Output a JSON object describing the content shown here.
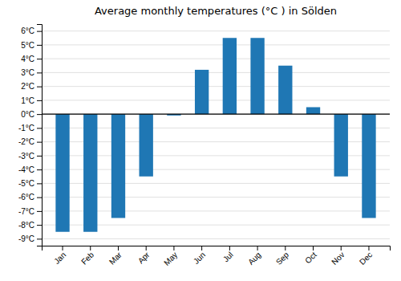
{
  "chart_data": {
    "type": "bar",
    "title": "Average monthly temperatures (°C ) in Sölden",
    "categories": [
      "Jan",
      "Feb",
      "Mar",
      "Apr",
      "May",
      "Jun",
      "Jul",
      "Aug",
      "Sep",
      "Oct",
      "Nov",
      "Dec"
    ],
    "values": [
      -8.5,
      -8.5,
      -7.5,
      -4.5,
      -0.1,
      3.2,
      5.5,
      5.5,
      3.5,
      0.5,
      -4.5,
      -7.5
    ],
    "ylim": [
      -9.5,
      6.5
    ],
    "yticks": [
      {
        "value": -9,
        "label": "-9°C"
      },
      {
        "value": -8,
        "label": "-8°C"
      },
      {
        "value": -7,
        "label": "-7°C"
      },
      {
        "value": -6,
        "label": "-6°C"
      },
      {
        "value": -5,
        "label": "-5°C"
      },
      {
        "value": -4,
        "label": "-4°C"
      },
      {
        "value": -3,
        "label": "-3°C"
      },
      {
        "value": -2,
        "label": "-2°C"
      },
      {
        "value": -1,
        "label": "-1°C"
      },
      {
        "value": 0,
        "label": "0°C"
      },
      {
        "value": 1,
        "label": "1°C"
      },
      {
        "value": 2,
        "label": "2°C"
      },
      {
        "value": 3,
        "label": "3°C"
      },
      {
        "value": 4,
        "label": "4°C"
      },
      {
        "value": 5,
        "label": "5°C"
      },
      {
        "value": 6,
        "label": "6°C"
      }
    ],
    "grid": true
  }
}
